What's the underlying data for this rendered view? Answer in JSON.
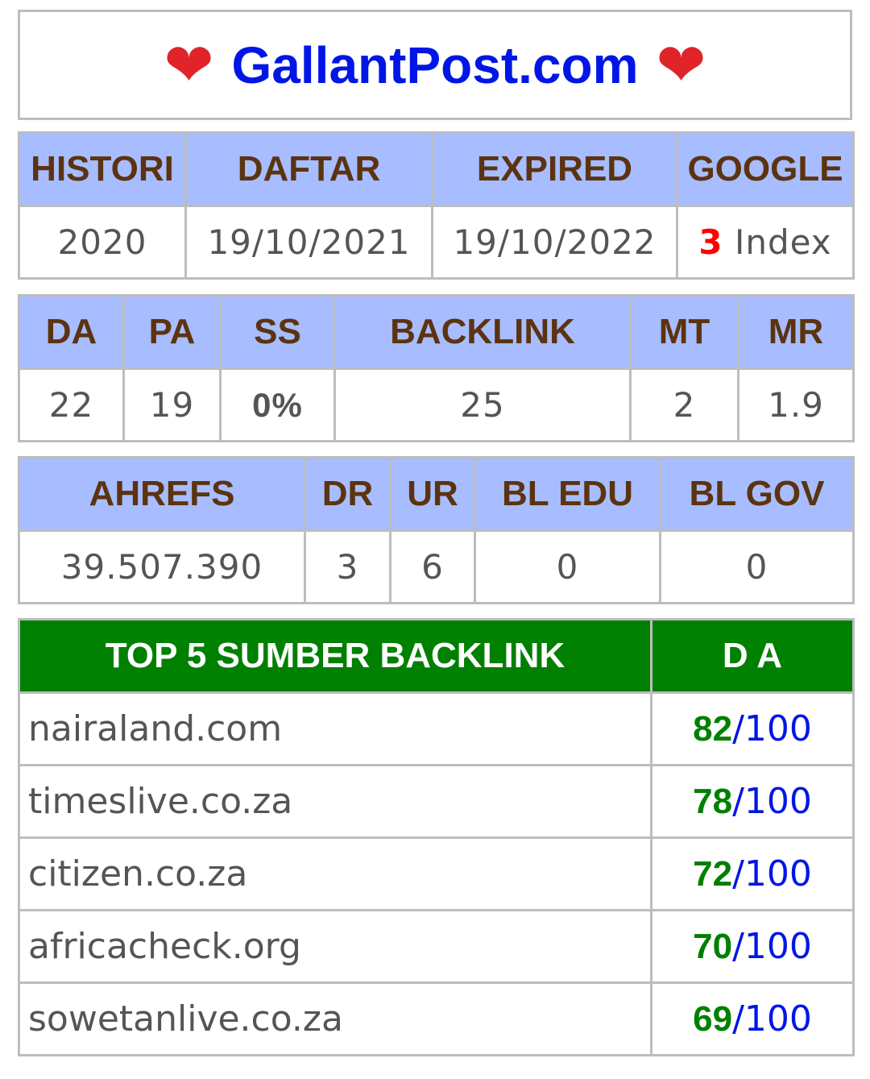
{
  "header": {
    "title": "GallantPost.com",
    "heart_left": "❤",
    "heart_right": "❤"
  },
  "table1": {
    "headers": [
      "HISTORI",
      "DAFTAR",
      "EXPIRED",
      "GOOGLE"
    ],
    "histori": "2020",
    "daftar": "19/10/2021",
    "expired": "19/10/2022",
    "google_count": "3",
    "google_label": "Index"
  },
  "table2": {
    "headers": [
      "DA",
      "PA",
      "SS",
      "BACKLINK",
      "MT",
      "MR"
    ],
    "values": [
      "22",
      "19",
      "0%",
      "25",
      "2",
      "1.9"
    ]
  },
  "table3": {
    "headers": [
      "AHREFS",
      "DR",
      "UR",
      "BL EDU",
      "BL GOV"
    ],
    "values": [
      "39.507.390",
      "3",
      "6",
      "0",
      "0"
    ]
  },
  "backlinks": {
    "header_source": "TOP 5 SUMBER BACKLINK",
    "header_da": "D A",
    "rows": [
      {
        "domain": "nairaland.com",
        "score": "82",
        "out_of": "/100"
      },
      {
        "domain": "timeslive.co.za",
        "score": "78",
        "out_of": "/100"
      },
      {
        "domain": "citizen.co.za",
        "score": "72",
        "out_of": "/100"
      },
      {
        "domain": "africacheck.org",
        "score": "70",
        "out_of": "/100"
      },
      {
        "domain": "sowetanlive.co.za",
        "score": "69",
        "out_of": "/100"
      }
    ]
  },
  "colors": {
    "header_bg": "#a7bdff",
    "header_text": "#5c3310",
    "green_header": "#008000",
    "title_blue": "#0016e6",
    "heart_red": "#e0242a"
  }
}
